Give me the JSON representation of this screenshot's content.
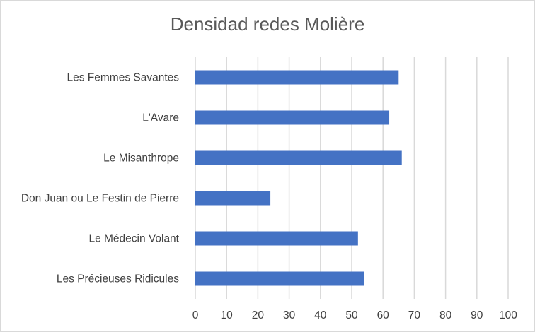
{
  "chart_data": {
    "type": "bar",
    "orientation": "horizontal",
    "title": "Densidad redes Molière",
    "xlabel": "",
    "ylabel": "",
    "categories": [
      "Les Femmes Savantes",
      "L'Avare",
      "Le Misanthrope",
      "Don Juan ou Le Festin de Pierre",
      "Le Médecin Volant",
      "Les Précieuses Ridicules"
    ],
    "values": [
      65,
      62,
      66,
      24,
      52,
      54
    ],
    "xlim": [
      0,
      100
    ],
    "ticks": [
      "0",
      "10",
      "20",
      "30",
      "40",
      "50",
      "60",
      "70",
      "80",
      "90",
      "100"
    ],
    "grid": true,
    "legend": "none",
    "bar_color": "#4472c4",
    "grid_color": "#d9d9d9"
  }
}
